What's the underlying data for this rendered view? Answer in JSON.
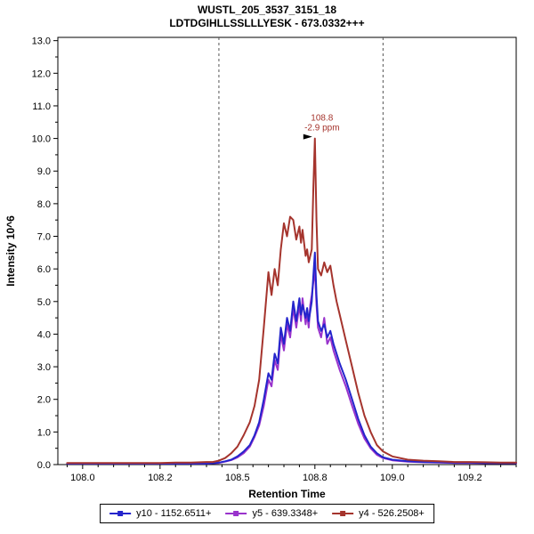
{
  "title": {
    "line1": "WUSTL_205_3537_3151_18",
    "line2": "LDTDGIHLLSSLLLYESK - 673.0332+++"
  },
  "axes": {
    "x_label": "Retention Time",
    "y_label": "Intensity 10^6",
    "y_ticks": [
      "0.0",
      "1.0",
      "2.0",
      "3.0",
      "4.0",
      "5.0",
      "6.0",
      "7.0",
      "8.0",
      "9.0",
      "10.0",
      "11.0",
      "12.0",
      "13.0"
    ],
    "x_ticks": [
      {
        "value": 108.0,
        "label": "108.0"
      },
      {
        "value": 108.25,
        "label": "108.2"
      },
      {
        "value": 108.5,
        "label": "108.5"
      },
      {
        "value": 108.75,
        "label": "108.8"
      },
      {
        "value": 109.0,
        "label": "109.0"
      },
      {
        "value": 109.25,
        "label": "109.2"
      }
    ]
  },
  "chart_data": {
    "type": "line",
    "title": "WUSTL_205_3537_3151_18",
    "subtitle": "LDTDGIHLLSSLLLYESK - 673.0332+++",
    "xlabel": "Retention Time",
    "ylabel": "Intensity 10^6",
    "xlim": [
      107.92,
      109.4
    ],
    "ylim": [
      0,
      13
    ],
    "grid": false,
    "legend_position": "bottom",
    "integration_boundaries": [
      108.44,
      108.97
    ],
    "annotation": {
      "x": 108.75,
      "y": 10.0,
      "lines": [
        "108.8",
        "-2.9 ppm"
      ],
      "color": "#a5342d"
    },
    "x": [
      107.95,
      108.0,
      108.05,
      108.1,
      108.15,
      108.2,
      108.25,
      108.3,
      108.35,
      108.4,
      108.42,
      108.44,
      108.46,
      108.48,
      108.5,
      108.52,
      108.54,
      108.555,
      108.57,
      108.585,
      108.6,
      108.61,
      108.62,
      108.63,
      108.64,
      108.65,
      108.66,
      108.67,
      108.68,
      108.69,
      108.7,
      108.705,
      108.71,
      108.72,
      108.725,
      108.73,
      108.735,
      108.74,
      108.745,
      108.75,
      108.755,
      108.76,
      108.77,
      108.78,
      108.79,
      108.8,
      108.81,
      108.82,
      108.83,
      108.85,
      108.87,
      108.89,
      108.91,
      108.93,
      108.95,
      108.97,
      109.0,
      109.05,
      109.1,
      109.15,
      109.2,
      109.25,
      109.3,
      109.35,
      109.4
    ],
    "series": [
      {
        "id": "y10",
        "name": "y10 - 1152.6511+",
        "color": "#2424cc",
        "values": [
          0.03,
          0.03,
          0.03,
          0.03,
          0.03,
          0.03,
          0.03,
          0.03,
          0.03,
          0.03,
          0.04,
          0.06,
          0.1,
          0.15,
          0.25,
          0.4,
          0.6,
          0.9,
          1.3,
          2.0,
          2.8,
          2.6,
          3.4,
          3.1,
          4.2,
          3.7,
          4.5,
          4.1,
          5.0,
          4.4,
          5.1,
          4.6,
          4.9,
          4.5,
          4.8,
          4.4,
          4.7,
          5.0,
          5.8,
          6.5,
          5.2,
          4.4,
          4.1,
          4.3,
          3.9,
          4.1,
          3.7,
          3.4,
          3.1,
          2.6,
          2.0,
          1.4,
          0.9,
          0.55,
          0.35,
          0.22,
          0.15,
          0.1,
          0.08,
          0.07,
          0.06,
          0.06,
          0.05,
          0.05,
          0.05
        ]
      },
      {
        "id": "y5",
        "name": "y5 - 639.3348+",
        "color": "#9933cc",
        "values": [
          0.03,
          0.03,
          0.03,
          0.03,
          0.03,
          0.03,
          0.03,
          0.03,
          0.03,
          0.03,
          0.04,
          0.05,
          0.09,
          0.14,
          0.22,
          0.35,
          0.55,
          0.85,
          1.2,
          1.8,
          2.6,
          2.4,
          3.2,
          2.9,
          4.0,
          3.5,
          4.3,
          3.9,
          4.8,
          4.2,
          4.9,
          4.4,
          5.1,
          4.3,
          4.6,
          4.2,
          4.9,
          5.2,
          5.6,
          6.0,
          4.9,
          4.2,
          3.9,
          4.5,
          3.7,
          3.9,
          3.5,
          3.2,
          2.9,
          2.4,
          1.8,
          1.25,
          0.8,
          0.5,
          0.3,
          0.2,
          0.13,
          0.09,
          0.07,
          0.06,
          0.05,
          0.05,
          0.04,
          0.04,
          0.04
        ]
      },
      {
        "id": "y4",
        "name": "y4 - 526.2508+",
        "color": "#a5342d",
        "values": [
          0.05,
          0.05,
          0.05,
          0.05,
          0.05,
          0.05,
          0.05,
          0.06,
          0.06,
          0.08,
          0.08,
          0.12,
          0.2,
          0.35,
          0.55,
          0.9,
          1.3,
          1.8,
          2.6,
          4.2,
          5.9,
          5.2,
          6.0,
          5.5,
          6.6,
          7.4,
          7.0,
          7.6,
          7.5,
          6.9,
          7.3,
          6.8,
          7.2,
          6.4,
          6.6,
          6.2,
          6.4,
          6.6,
          8.5,
          10.0,
          7.5,
          6.0,
          5.8,
          6.2,
          5.9,
          6.1,
          5.5,
          5.0,
          4.6,
          3.8,
          3.0,
          2.2,
          1.5,
          1.0,
          0.6,
          0.4,
          0.25,
          0.15,
          0.12,
          0.1,
          0.08,
          0.08,
          0.07,
          0.06,
          0.06
        ]
      }
    ]
  }
}
